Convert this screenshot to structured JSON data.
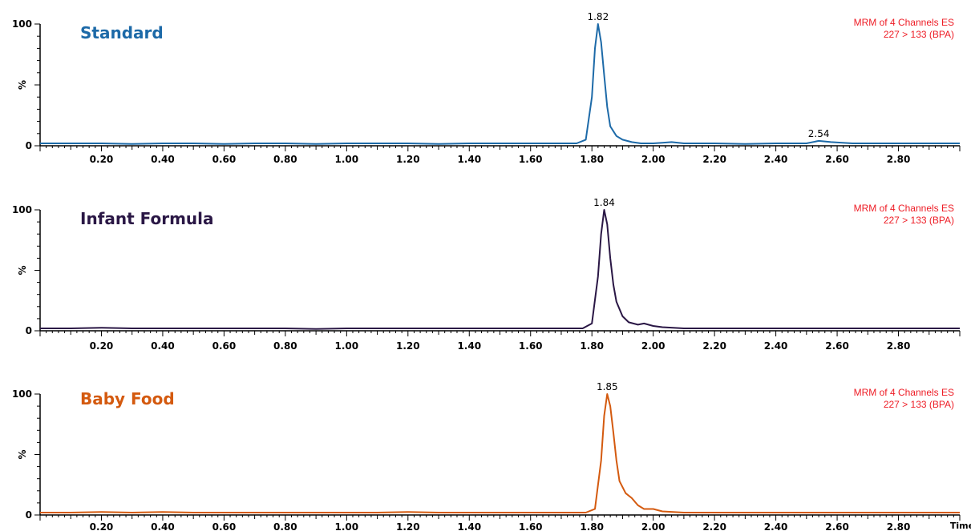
{
  "chart_data": [
    {
      "type": "line",
      "title": "Standard",
      "color": "#1d6aa8",
      "annotation": [
        "MRM of 4 Channels ES",
        "227 > 133 (BPA)"
      ],
      "annotation_color": "#ee1c25",
      "xlim": [
        0.0,
        3.0
      ],
      "ylim": [
        0,
        100
      ],
      "xticks": [
        "0.20",
        "0.40",
        "0.60",
        "0.80",
        "1.00",
        "1.20",
        "1.40",
        "1.60",
        "1.80",
        "2.00",
        "2.20",
        "2.40",
        "2.60",
        "2.80"
      ],
      "ylabel": "%",
      "ytick_top": "100",
      "ytick_bottom": "0",
      "peaks": [
        {
          "x": 1.82,
          "label": "1.82"
        },
        {
          "x": 2.54,
          "label": "2.54"
        }
      ],
      "series": [
        {
          "x": [
            0.0,
            0.1,
            0.2,
            0.3,
            0.4,
            0.5,
            0.6,
            0.7,
            0.8,
            0.9,
            1.0,
            1.1,
            1.2,
            1.3,
            1.4,
            1.5,
            1.6,
            1.7,
            1.75,
            1.78,
            1.8,
            1.81,
            1.82,
            1.83,
            1.84,
            1.85,
            1.86,
            1.88,
            1.9,
            1.93,
            1.96,
            2.0,
            2.03,
            2.06,
            2.1,
            2.2,
            2.3,
            2.4,
            2.5,
            2.54,
            2.58,
            2.65,
            2.7,
            2.8,
            2.9,
            3.0
          ],
          "y": [
            2,
            2,
            2,
            1.5,
            2,
            2,
            1.5,
            2,
            2,
            1.5,
            2,
            2,
            2,
            1.5,
            2,
            2,
            2,
            2,
            2,
            5,
            40,
            80,
            100,
            85,
            58,
            32,
            16,
            8,
            5,
            3,
            2,
            2,
            2.5,
            3,
            2,
            2,
            1.5,
            2,
            2,
            4,
            3,
            2,
            2,
            2,
            2,
            2
          ]
        }
      ]
    },
    {
      "type": "line",
      "title": "Infant Formula",
      "color": "#2a1745",
      "annotation": [
        "MRM of 4 Channels ES",
        "227 > 133 (BPA)"
      ],
      "annotation_color": "#ee1c25",
      "xlim": [
        0.0,
        3.0
      ],
      "ylim": [
        0,
        100
      ],
      "xticks": [
        "0.20",
        "0.40",
        "0.60",
        "0.80",
        "1.00",
        "1.20",
        "1.40",
        "1.60",
        "1.80",
        "2.00",
        "2.20",
        "2.40",
        "2.60",
        "2.80"
      ],
      "ylabel": "%",
      "ytick_top": "100",
      "ytick_bottom": "0",
      "peaks": [
        {
          "x": 1.84,
          "label": "1.84"
        }
      ],
      "series": [
        {
          "x": [
            0.0,
            0.1,
            0.2,
            0.3,
            0.4,
            0.5,
            0.6,
            0.7,
            0.8,
            0.9,
            1.0,
            1.1,
            1.2,
            1.3,
            1.4,
            1.5,
            1.6,
            1.7,
            1.77,
            1.8,
            1.82,
            1.83,
            1.84,
            1.85,
            1.86,
            1.87,
            1.88,
            1.9,
            1.92,
            1.95,
            1.97,
            2.0,
            2.03,
            2.1,
            2.2,
            2.3,
            2.4,
            2.5,
            2.6,
            2.7,
            2.8,
            2.9,
            3.0
          ],
          "y": [
            2,
            2,
            2.5,
            2,
            2,
            2,
            2,
            2,
            2,
            1.5,
            2,
            2,
            2,
            2,
            2,
            2,
            2,
            2,
            2,
            6,
            45,
            80,
            100,
            88,
            60,
            38,
            24,
            12,
            7,
            5,
            6,
            4,
            3,
            2,
            2,
            2,
            2,
            2,
            2,
            2,
            2,
            2,
            2
          ]
        }
      ]
    },
    {
      "type": "line",
      "title": "Baby Food",
      "color": "#d45a0f",
      "annotation": [
        "MRM of 4 Channels ES",
        "227 > 133 (BPA)"
      ],
      "annotation_color": "#ee1c25",
      "xlim": [
        0.0,
        3.0
      ],
      "ylim": [
        0,
        100
      ],
      "xticks": [
        "0.20",
        "0.40",
        "0.60",
        "0.80",
        "1.00",
        "1.20",
        "1.40",
        "1.60",
        "1.80",
        "2.00",
        "2.20",
        "2.40",
        "2.60",
        "2.80"
      ],
      "xlabel": "Time",
      "ylabel": "%",
      "ytick_top": "100",
      "ytick_bottom": "0",
      "peaks": [
        {
          "x": 1.85,
          "label": "1.85"
        }
      ],
      "series": [
        {
          "x": [
            0.0,
            0.1,
            0.2,
            0.3,
            0.4,
            0.5,
            0.6,
            0.7,
            0.8,
            0.9,
            1.0,
            1.1,
            1.2,
            1.3,
            1.4,
            1.5,
            1.6,
            1.7,
            1.78,
            1.81,
            1.83,
            1.84,
            1.85,
            1.86,
            1.87,
            1.88,
            1.89,
            1.91,
            1.93,
            1.95,
            1.97,
            2.0,
            2.03,
            2.1,
            2.2,
            2.3,
            2.4,
            2.5,
            2.6,
            2.7,
            2.8,
            2.9,
            3.0
          ],
          "y": [
            2,
            2,
            2.5,
            2,
            2.5,
            2,
            2,
            2,
            2,
            2,
            2,
            2,
            2.5,
            2,
            2,
            2,
            2,
            2,
            2,
            5,
            45,
            82,
            100,
            90,
            68,
            45,
            28,
            18,
            14,
            8,
            5,
            5,
            3,
            2,
            2,
            2,
            2,
            2,
            2,
            2,
            2,
            2,
            2
          ]
        }
      ]
    }
  ]
}
